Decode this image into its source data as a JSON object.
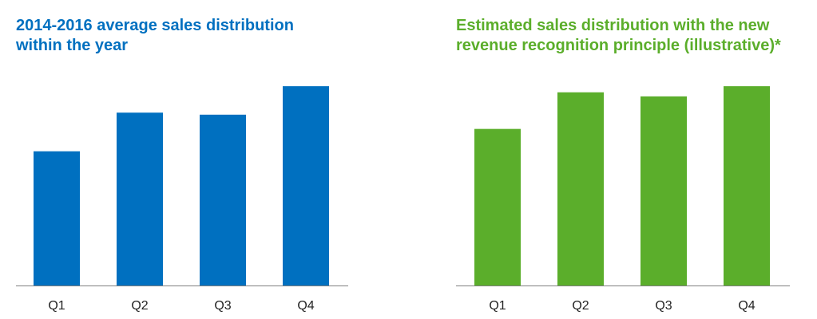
{
  "chart_data": [
    {
      "type": "bar",
      "title": "2014-2016 average sales distribution\nwithin the year",
      "categories": [
        "Q1",
        "Q2",
        "Q3",
        "Q4"
      ],
      "values": [
        66,
        85,
        84,
        98
      ],
      "ylim": [
        0,
        100
      ],
      "grid": false,
      "legend": "none",
      "color": "#0070C0",
      "title_color": "#0070C0",
      "axis_color": "#7F7F7F"
    },
    {
      "type": "bar",
      "title": "Estimated sales distribution with the new\nrevenue recognition principle (illustrative)*",
      "categories": [
        "Q1",
        "Q2",
        "Q3",
        "Q4"
      ],
      "values": [
        77,
        95,
        93,
        98
      ],
      "ylim": [
        0,
        100
      ],
      "grid": false,
      "legend": "none",
      "color": "#5BAE2B",
      "title_color": "#5BAE2B",
      "axis_color": "#7F7F7F"
    }
  ]
}
